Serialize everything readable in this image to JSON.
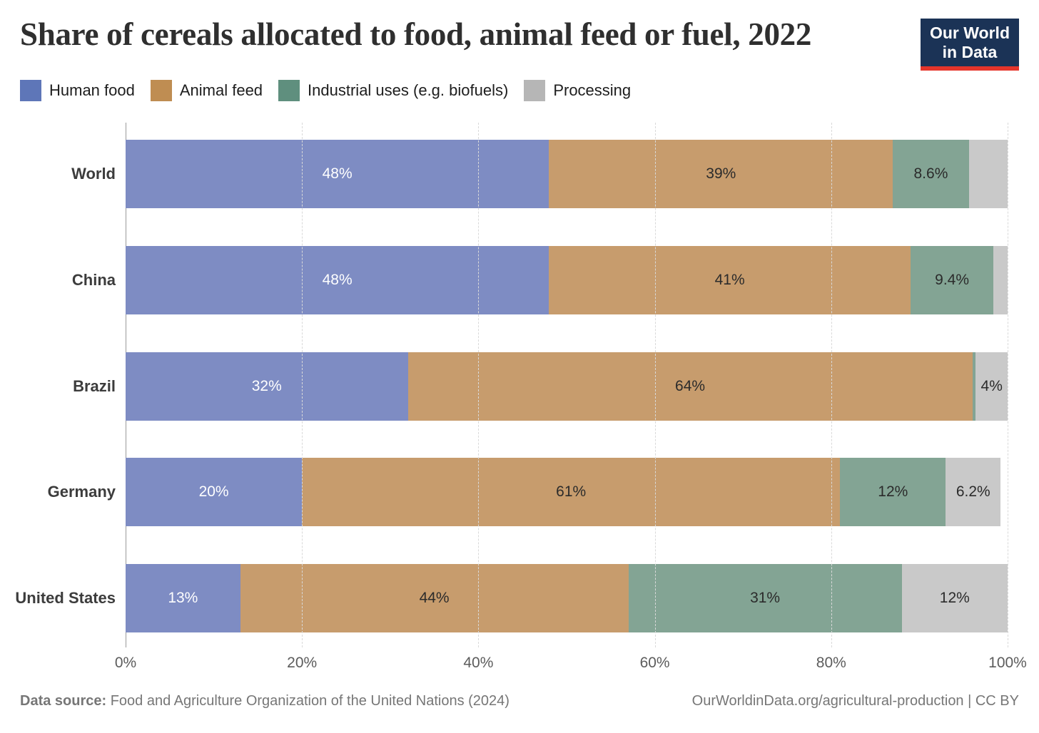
{
  "header": {
    "title": "Share of cereals allocated to food, animal feed or fuel, 2022",
    "logo_line1": "Our World",
    "logo_line2": "in Data"
  },
  "chart_data": {
    "type": "bar",
    "orientation": "horizontal-stacked",
    "title": "Share of cereals allocated to food, animal feed or fuel, 2022",
    "categories": [
      "World",
      "China",
      "Brazil",
      "Germany",
      "United States"
    ],
    "series": [
      {
        "name": "Human food",
        "bar_color": "#7e8cc3",
        "legend_color": "#5e76b8",
        "text_color": "#ffffff",
        "values": [
          48,
          48,
          32,
          20,
          13
        ],
        "labels": [
          "48%",
          "48%",
          "32%",
          "20%",
          "13%"
        ]
      },
      {
        "name": "Animal feed",
        "bar_color": "#c79c6d",
        "legend_color": "#bf8d52",
        "text_color": "#2b2b2b",
        "values": [
          39,
          41,
          64,
          61,
          44
        ],
        "labels": [
          "39%",
          "41%",
          "64%",
          "61%",
          "44%"
        ]
      },
      {
        "name": "Industrial uses (e.g. biofuels)",
        "bar_color": "#83a494",
        "legend_color": "#5f8f7e",
        "text_color": "#2b2b2b",
        "values": [
          8.6,
          9.4,
          0.4,
          12,
          31
        ],
        "labels": [
          "8.6%",
          "9.4%",
          "",
          "12%",
          "31%"
        ]
      },
      {
        "name": "Processing",
        "bar_color": "#c9c9c9",
        "legend_color": "#b6b6b6",
        "text_color": "#2b2b2b",
        "values": [
          4.4,
          1.6,
          3.6,
          6.2,
          12
        ],
        "labels": [
          "",
          "",
          "4%",
          "6.2%",
          "12%"
        ]
      }
    ],
    "x_ticks": [
      "0%",
      "20%",
      "40%",
      "60%",
      "80%",
      "100%"
    ],
    "x_tick_values": [
      0,
      20,
      40,
      60,
      80,
      100
    ],
    "xlim": [
      0,
      100
    ],
    "grid": "dashed-vertical",
    "legend_position": "top"
  },
  "footer": {
    "source_label": "Data source:",
    "source_text": "Food and Agriculture Organization of the United Nations (2024)",
    "link_text": "OurWorldinData.org/agricultural-production | CC BY"
  }
}
